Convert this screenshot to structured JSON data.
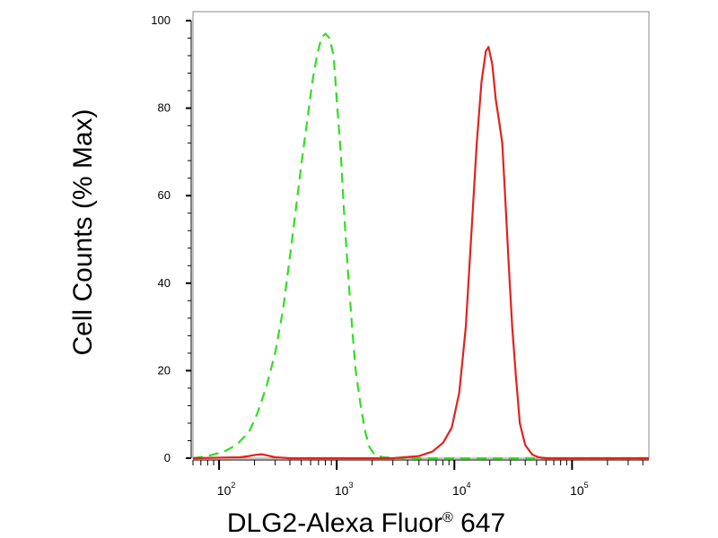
{
  "chart_data": {
    "type": "line",
    "title": "",
    "xlabel": "DLG2-Alexa Fluor",
    "xlabel_mark": "®",
    "xlabel_suffix": " 647",
    "ylabel": "Cell Counts (% Max)",
    "xscale": "log",
    "xlim": [
      60,
      450000
    ],
    "ylim": [
      0,
      100
    ],
    "grid": false,
    "legend": "none",
    "yticks": [
      0,
      20,
      40,
      60,
      80,
      100
    ],
    "yticklabels": [
      "0",
      "20",
      "40",
      "60",
      "80",
      "100"
    ],
    "xticks": [
      100,
      1000,
      10000,
      100000
    ],
    "xticklabels": [
      {
        "base": "10",
        "exp": "2"
      },
      {
        "base": "10",
        "exp": "3"
      },
      {
        "base": "10",
        "exp": "4"
      },
      {
        "base": "10",
        "exp": "5"
      }
    ],
    "series": [
      {
        "color": "#33dd22",
        "style": "dashed",
        "points": [
          [
            60,
            0
          ],
          [
            80,
            0.5
          ],
          [
            110,
            1.5
          ],
          [
            140,
            3
          ],
          [
            180,
            6
          ],
          [
            210,
            10
          ],
          [
            250,
            16
          ],
          [
            300,
            24
          ],
          [
            350,
            34
          ],
          [
            400,
            46
          ],
          [
            450,
            57
          ],
          [
            500,
            67
          ],
          [
            560,
            77
          ],
          [
            620,
            86
          ],
          [
            680,
            92
          ],
          [
            740,
            96
          ],
          [
            800,
            97
          ],
          [
            870,
            96
          ],
          [
            940,
            92
          ],
          [
            1000,
            82
          ],
          [
            1080,
            70
          ],
          [
            1150,
            57
          ],
          [
            1250,
            42
          ],
          [
            1350,
            30
          ],
          [
            1450,
            20
          ],
          [
            1600,
            12
          ],
          [
            1750,
            6
          ],
          [
            1900,
            2.5
          ],
          [
            2100,
            0.8
          ],
          [
            2500,
            0.2
          ],
          [
            3500,
            0
          ],
          [
            50000,
            0
          ],
          [
            450000,
            0
          ]
        ]
      },
      {
        "color": "#e0231e",
        "style": "solid",
        "points": [
          [
            60,
            0
          ],
          [
            150,
            0.2
          ],
          [
            180,
            0.5
          ],
          [
            210,
            0.8
          ],
          [
            230,
            0.9
          ],
          [
            260,
            0.6
          ],
          [
            300,
            0.2
          ],
          [
            400,
            0
          ],
          [
            3000,
            0
          ],
          [
            5000,
            0.5
          ],
          [
            6500,
            1.5
          ],
          [
            8000,
            3.5
          ],
          [
            9500,
            7
          ],
          [
            11000,
            15
          ],
          [
            12500,
            30
          ],
          [
            14000,
            52
          ],
          [
            15500,
            72
          ],
          [
            17000,
            86
          ],
          [
            18500,
            93
          ],
          [
            19500,
            94
          ],
          [
            21000,
            90
          ],
          [
            22500,
            82
          ],
          [
            24000,
            77
          ],
          [
            25500,
            72
          ],
          [
            27000,
            60
          ],
          [
            29000,
            44
          ],
          [
            31000,
            30
          ],
          [
            33500,
            18
          ],
          [
            36000,
            8
          ],
          [
            40000,
            3
          ],
          [
            46000,
            0.8
          ],
          [
            52000,
            0.2
          ],
          [
            60000,
            0
          ],
          [
            450000,
            0
          ]
        ]
      }
    ]
  }
}
